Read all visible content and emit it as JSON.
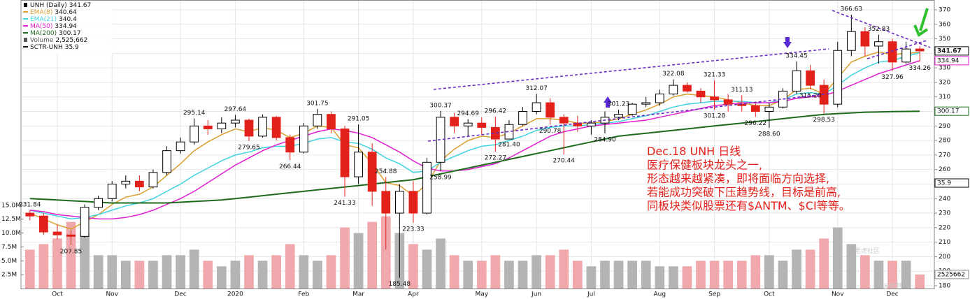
{
  "chart_data": {
    "type": "candlestick",
    "title": "UNH (Daily)",
    "categories": [
      null,
      null,
      "Oct",
      null,
      null,
      null,
      "Nov",
      null,
      null,
      null,
      null,
      "Dec",
      null,
      null,
      null,
      "2020",
      null,
      null,
      null,
      null,
      "Feb",
      null,
      null,
      null,
      "Mar",
      null,
      null,
      null,
      "Apr",
      null,
      null,
      null,
      null,
      "May",
      null,
      null,
      null,
      "Jun",
      null,
      null,
      null,
      "Jul",
      null,
      null,
      null,
      null,
      "Aug",
      null,
      null,
      null,
      "Sep",
      null,
      null,
      null,
      "Oct",
      null,
      null,
      null,
      null,
      "Nov",
      null,
      null,
      null,
      "Dec",
      null,
      null
    ],
    "candles": [
      [
        230,
        231.84,
        225,
        228
      ],
      [
        228,
        230,
        215,
        217
      ],
      [
        217,
        222,
        212,
        215
      ],
      [
        215,
        218,
        207.85,
        214
      ],
      [
        214,
        236,
        213,
        234
      ],
      [
        234,
        242,
        232,
        240
      ],
      [
        240,
        252,
        238,
        250
      ],
      [
        250,
        256,
        247,
        252
      ],
      [
        252,
        256,
        245,
        248
      ],
      [
        248,
        260,
        247,
        258
      ],
      [
        258,
        276,
        256,
        273
      ],
      [
        273,
        282,
        271,
        279
      ],
      [
        279,
        295.14,
        277,
        290
      ],
      [
        290,
        294,
        284,
        288
      ],
      [
        288,
        296,
        285,
        292
      ],
      [
        292,
        297.64,
        289,
        294
      ],
      [
        294,
        295,
        279.65,
        283
      ],
      [
        283,
        298,
        282,
        296
      ],
      [
        296,
        297,
        280,
        282
      ],
      [
        282,
        284,
        266.44,
        272
      ],
      [
        272,
        292,
        271,
        290
      ],
      [
        290,
        301.75,
        288,
        298
      ],
      [
        298,
        300,
        285,
        288
      ],
      [
        288,
        290,
        241.33,
        255
      ],
      [
        255,
        291.05,
        250,
        272
      ],
      [
        272,
        278,
        235,
        245
      ],
      [
        245,
        254.88,
        205,
        230
      ],
      [
        230,
        250,
        185.48,
        245
      ],
      [
        245,
        252,
        223.33,
        230
      ],
      [
        230,
        268,
        229,
        265
      ],
      [
        265,
        300.37,
        258.99,
        296
      ],
      [
        296,
        299,
        285,
        290
      ],
      [
        290,
        294.69,
        283,
        292
      ],
      [
        292,
        296,
        284,
        289
      ],
      [
        289,
        296.42,
        272.27,
        281
      ],
      [
        281,
        294,
        281.4,
        291
      ],
      [
        291,
        303,
        290,
        300
      ],
      [
        300,
        312.07,
        298,
        306
      ],
      [
        306,
        309,
        290.78,
        296
      ],
      [
        296,
        298,
        270.44,
        292
      ],
      [
        292,
        297,
        286,
        290
      ],
      [
        290,
        294,
        284,
        292
      ],
      [
        292,
        300,
        284.9,
        296
      ],
      [
        296,
        301.23,
        294,
        298
      ],
      [
        298,
        306,
        297,
        305
      ],
      [
        305,
        310,
        303,
        306
      ],
      [
        306,
        315,
        304,
        312
      ],
      [
        312,
        322.08,
        311,
        318
      ],
      [
        318,
        320,
        313,
        314
      ],
      [
        314,
        316,
        306,
        310
      ],
      [
        310,
        321.33,
        301.28,
        308
      ],
      [
        308,
        312,
        300,
        305
      ],
      [
        305,
        311.13,
        300,
        304
      ],
      [
        304,
        306,
        296.22,
        300
      ],
      [
        300,
        306,
        288.6,
        303
      ],
      [
        303,
        316,
        302,
        314
      ],
      [
        314,
        334.45,
        312,
        328
      ],
      [
        328,
        332,
        315.2,
        318
      ],
      [
        318,
        322,
        298.53,
        305
      ],
      [
        305,
        348,
        303,
        342
      ],
      [
        342,
        366.63,
        338,
        355
      ],
      [
        355,
        358,
        338,
        345
      ],
      [
        345,
        352.83,
        333,
        348
      ],
      [
        348,
        350,
        327.96,
        334
      ],
      [
        334,
        348,
        333,
        343
      ],
      [
        343,
        345,
        334.26,
        341.67
      ]
    ],
    "up_color": "#000000",
    "down_color": "#e3211b",
    "series": [
      {
        "name": "EMA(8)",
        "color": "#d9a030",
        "values": [
          230,
          226,
          222,
          219,
          224,
          229,
          236,
          241,
          243,
          248,
          256,
          264,
          273,
          279,
          284,
          288,
          286,
          289,
          287,
          282,
          285,
          290,
          289,
          277,
          275,
          264,
          251,
          249,
          242,
          250,
          266,
          274,
          280,
          283,
          282,
          285,
          290,
          295,
          295,
          294,
          292,
          292,
          293,
          295,
          298,
          301,
          305,
          310,
          312,
          311,
          310,
          308,
          306,
          304,
          304,
          308,
          315,
          316,
          312,
          323,
          334,
          338,
          341,
          339,
          340,
          340.64
        ]
      },
      {
        "name": "EMA(21)",
        "color": "#3fd3e0",
        "values": [
          232,
          230,
          228,
          226,
          227,
          229,
          232,
          235,
          237,
          240,
          245,
          250,
          256,
          261,
          266,
          270,
          272,
          275,
          276,
          276,
          278,
          281,
          282,
          279,
          278,
          274,
          268,
          264,
          258,
          259,
          265,
          269,
          273,
          276,
          277,
          280,
          283,
          287,
          289,
          290,
          290,
          291,
          292,
          293,
          295,
          297,
          300,
          303,
          305,
          306,
          307,
          307,
          307,
          306,
          306,
          308,
          312,
          313,
          312,
          318,
          325,
          330,
          334,
          335,
          338,
          340.4
        ]
      },
      {
        "name": "MA(50)",
        "color": "#e020d0",
        "right_tag": true,
        "values": [
          232,
          231,
          229,
          228,
          227,
          226,
          226,
          227,
          229,
          232,
          236,
          240,
          245,
          251,
          257,
          263,
          268,
          273,
          277,
          280,
          283,
          286,
          288,
          287,
          285,
          282,
          277,
          272,
          266,
          261,
          259,
          259,
          260,
          262,
          264,
          268,
          273,
          278,
          283,
          286,
          288,
          290,
          291,
          292,
          293,
          294,
          296,
          298,
          300,
          302,
          304,
          305,
          306,
          306,
          306,
          307,
          309,
          310,
          311,
          314,
          318,
          322,
          326,
          329,
          332,
          334.94
        ]
      },
      {
        "name": "MA(200)",
        "color": "#1e6b1e",
        "right_tag": true,
        "values": [
          240,
          239.5,
          239,
          238.5,
          238,
          237.5,
          237,
          237,
          237,
          237,
          237,
          237.5,
          238,
          238.5,
          239,
          240,
          241,
          242,
          243,
          244,
          245,
          246,
          247,
          248,
          249,
          250,
          251,
          252,
          253,
          255,
          257,
          259,
          261,
          263,
          265,
          267,
          269,
          271,
          273,
          275,
          277,
          279,
          281,
          283,
          284,
          285,
          286,
          287,
          288,
          289,
          290,
          291,
          292,
          293,
          294,
          295,
          296,
          297,
          298,
          298.5,
          299,
          299.5,
          299.7,
          299.9,
          300,
          300.17
        ]
      }
    ],
    "volume": {
      "name": "Volume",
      "legend_label": "2,525,662",
      "tag_label": "2525662",
      "up_color": "#b4b4b4",
      "down_color": "#f0a8ac",
      "values": [
        7,
        8,
        9,
        12,
        10,
        6,
        6,
        5,
        5,
        5,
        6,
        6,
        7,
        5,
        4,
        5,
        6,
        5,
        6,
        8,
        6,
        5,
        6,
        11,
        10,
        12,
        13,
        10,
        8,
        7,
        9,
        6,
        5,
        5,
        6,
        5,
        5,
        6,
        6,
        7,
        5,
        4,
        5,
        5,
        5,
        5,
        4,
        4,
        4,
        5,
        5,
        5,
        5,
        6,
        6,
        5,
        7,
        7,
        9,
        11,
        8,
        6,
        5,
        5,
        5,
        2.525662
      ],
      "ylim": [
        0,
        20
      ],
      "yticks": [
        {
          "value": 2.5,
          "label": "2.5M"
        },
        {
          "value": 5,
          "label": "5.0M"
        },
        {
          "value": 7.5,
          "label": "7.5M"
        },
        {
          "value": 10,
          "label": "10.0M"
        },
        {
          "value": 12.5,
          "label": "12.5M"
        },
        {
          "value": 15,
          "label": "15.0M"
        }
      ]
    },
    "sctr": {
      "name": "SCTR-UNH",
      "value": 35.9
    },
    "ylim": [
      180,
      370
    ],
    "yticks": [
      180,
      190,
      200,
      210,
      220,
      230,
      240,
      250,
      260,
      270,
      280,
      290,
      300,
      310,
      320,
      330,
      340,
      350,
      360,
      370
    ],
    "grid": true,
    "annotations": [
      231.84,
      207.85,
      295.14,
      297.64,
      279.65,
      266.44,
      301.75,
      291.05,
      241.33,
      254.88,
      185.48,
      223.33,
      300.37,
      258.99,
      294.69,
      296.42,
      272.27,
      312.07,
      {
        "value": 281.4,
        "label": "281.40"
      },
      290.78,
      270.44,
      301.23,
      {
        "value": 284.9,
        "label": "284.90"
      },
      322.08,
      321.33,
      301.28,
      311.13,
      296.22,
      {
        "value": 288.6,
        "label": "288.60"
      },
      {
        "value": 315.2,
        "label": "315.20"
      },
      334.45,
      298.53,
      366.63,
      352.83,
      327.96,
      334.26
    ],
    "note": [
      "Dec.18 UNH 日线",
      "医疗保健板块龙头之一,",
      "形态越来越紧凑，即将面临方向选择,",
      "若能成功突破下压趋势线，目标是前高,",
      "同板块类似股票还有$ANTM、$CI等等。"
    ],
    "watermark": [
      "老虎社区",
      "@收割"
    ]
  }
}
